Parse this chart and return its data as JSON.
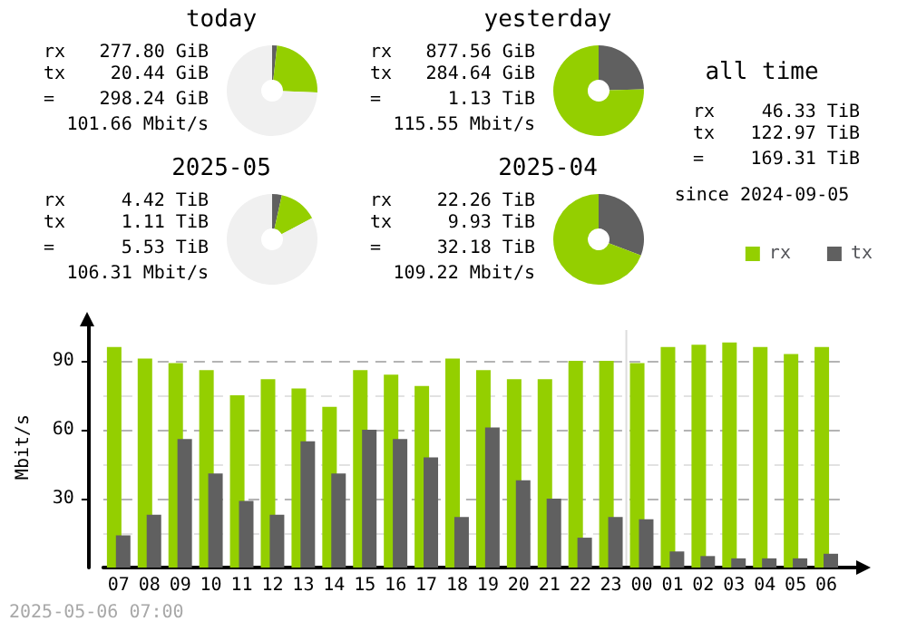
{
  "chart_data": [
    {
      "type": "donut",
      "title": "today",
      "categories": [
        null,
        null,
        null
      ],
      "values": [
        1.76,
        23.9,
        74.34
      ],
      "colors": [
        "#606060",
        "#94cf00",
        "#f0f0f0"
      ],
      "annotations": [
        "rx",
        "277.80 GiB",
        "tx",
        "20.44 GiB",
        "=",
        "298.24 GiB",
        "101.66 Mbit/s"
      ]
    },
    {
      "type": "donut",
      "title": "yesterday",
      "categories": [
        null,
        null
      ],
      "values": [
        24.5,
        75.5
      ],
      "colors": [
        "#606060",
        "#94cf00"
      ],
      "annotations": [
        "rx",
        "877.56 GiB",
        "tx",
        "284.64 GiB",
        "=",
        "1.13 TiB",
        "115.55 Mbit/s"
      ]
    },
    {
      "type": "other",
      "title": "all time",
      "subtitle": "since 2024-09-05",
      "annotations": [
        "rx",
        "46.33 TiB",
        "tx",
        "122.97 TiB",
        "=",
        "169.31 TiB"
      ]
    },
    {
      "type": "donut",
      "title": "2025-05",
      "categories": [
        null,
        null,
        null
      ],
      "values": [
        3.45,
        13.74,
        82.81
      ],
      "colors": [
        "#606060",
        "#94cf00",
        "#f0f0f0"
      ],
      "annotations": [
        "rx",
        "4.42 TiB",
        "tx",
        "1.11 TiB",
        "=",
        "5.53 TiB",
        "106.31 Mbit/s"
      ]
    },
    {
      "type": "donut",
      "title": "2025-04",
      "categories": [
        null,
        null
      ],
      "values": [
        30.8,
        69.2
      ],
      "colors": [
        "#606060",
        "#94cf00"
      ],
      "annotations": [
        "rx",
        "22.26 TiB",
        "tx",
        "9.93 TiB",
        "=",
        "32.18 TiB",
        "109.22 Mbit/s"
      ]
    },
    {
      "type": "bar",
      "categories": [
        "07",
        "08",
        "09",
        "10",
        "11",
        "12",
        "13",
        "14",
        "15",
        "16",
        "17",
        "18",
        "19",
        "20",
        "21",
        "22",
        "23",
        "00",
        "01",
        "02",
        "03",
        "04",
        "05",
        "06"
      ],
      "series": [
        {
          "name": "rx",
          "color": "#94cf00",
          "values": [
            96,
            91,
            89,
            86,
            75,
            82,
            78,
            70,
            86,
            84,
            79,
            91,
            86,
            82,
            82,
            90,
            90,
            89,
            96,
            97,
            98,
            96,
            93,
            96
          ]
        },
        {
          "name": "tx",
          "color": "#606060",
          "values": [
            14,
            23,
            56,
            41,
            29,
            23,
            55,
            41,
            60,
            56,
            48,
            22,
            61,
            38,
            30,
            13,
            22,
            21,
            7,
            5,
            4,
            4,
            4,
            6
          ]
        }
      ],
      "ylabel": "Mbit/s",
      "ylim": [
        0,
        105
      ],
      "yticks": [
        {
          "value": 15,
          "label": null
        },
        30,
        {
          "value": 45,
          "label": null
        },
        60,
        {
          "value": 75,
          "label": null
        },
        90
      ],
      "grid": true,
      "legend": "top right",
      "ref_lines": [
        {
          "axis": "x",
          "value": "00",
          "color": "#dcdcdc"
        }
      ],
      "annotations": [
        "2025-05-06 07:00"
      ]
    }
  ]
}
